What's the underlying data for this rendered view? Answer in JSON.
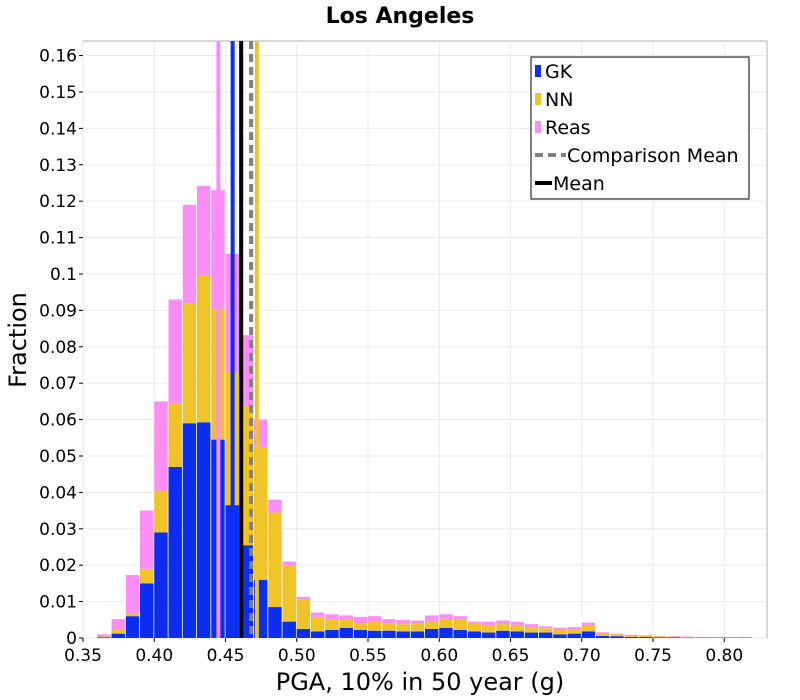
{
  "chart_data": {
    "type": "bar",
    "stacked": true,
    "title": "Los Angeles",
    "xlabel": "PGA, 10% in 50 year (g)",
    "ylabel": "Fraction",
    "xlim": [
      0.35,
      0.83
    ],
    "ylim": [
      0,
      0.164
    ],
    "grid": true,
    "legend_position": "top-right",
    "bin_width": 0.01,
    "x_ticks": [
      0.35,
      0.4,
      0.45,
      0.5,
      0.55,
      0.6,
      0.65,
      0.7,
      0.75,
      0.8
    ],
    "x_tick_labels": [
      "0.35",
      "0.40",
      "0.45",
      "0.50",
      "0.55",
      "0.60",
      "0.65",
      "0.70",
      "0.75",
      "0.80"
    ],
    "y_ticks": [
      0,
      0.01,
      0.02,
      0.03,
      0.04,
      0.05,
      0.06,
      0.07,
      0.08,
      0.09,
      0.1,
      0.11,
      0.12,
      0.13,
      0.14,
      0.15,
      0.16
    ],
    "y_tick_labels": [
      "0",
      "0.01",
      "0.02",
      "0.03",
      "0.04",
      "0.05",
      "0.06",
      "0.07",
      "0.08",
      "0.09",
      "0.1",
      "0.11",
      "0.12",
      "0.13",
      "0.14",
      "0.15",
      "0.16"
    ],
    "bin_starts": [
      0.36,
      0.37,
      0.38,
      0.39,
      0.4,
      0.41,
      0.42,
      0.43,
      0.44,
      0.45,
      0.46,
      0.47,
      0.48,
      0.49,
      0.5,
      0.51,
      0.52,
      0.53,
      0.54,
      0.55,
      0.56,
      0.57,
      0.58,
      0.59,
      0.6,
      0.61,
      0.62,
      0.63,
      0.64,
      0.65,
      0.66,
      0.67,
      0.68,
      0.69,
      0.7,
      0.71,
      0.72,
      0.73,
      0.74,
      0.75,
      0.76,
      0.77,
      0.78,
      0.79,
      0.8,
      0.81,
      0.82
    ],
    "series": [
      {
        "name": "GK",
        "color": "#0b2ef0",
        "values": [
          0.0002,
          0.0012,
          0.006,
          0.015,
          0.029,
          0.047,
          0.059,
          0.0592,
          0.0545,
          0.0365,
          0.0255,
          0.016,
          0.0085,
          0.0045,
          0.0025,
          0.0018,
          0.0022,
          0.0028,
          0.0022,
          0.002,
          0.002,
          0.0018,
          0.0018,
          0.0025,
          0.0028,
          0.0022,
          0.0018,
          0.0015,
          0.002,
          0.0018,
          0.0015,
          0.0015,
          0.001,
          0.0012,
          0.0018,
          0.0006,
          0.0005,
          0.0003,
          0.0003,
          0.0002,
          0.0002,
          0.0001,
          0.0001,
          0.0001,
          0.0001,
          0.0001,
          0
        ]
      },
      {
        "name": "NN",
        "color": "#f0c428",
        "values": [
          0.0002,
          0.001,
          0.0008,
          0.004,
          0.0115,
          0.0175,
          0.033,
          0.0405,
          0.036,
          0.0365,
          0.0382,
          0.0365,
          0.026,
          0.0155,
          0.008,
          0.004,
          0.0028,
          0.0022,
          0.0018,
          0.0025,
          0.002,
          0.002,
          0.0022,
          0.0022,
          0.0025,
          0.0028,
          0.0022,
          0.0018,
          0.0018,
          0.0018,
          0.0015,
          0.0012,
          0.0012,
          0.0012,
          0.0018,
          0.0008,
          0.0005,
          0.0004,
          0.0003,
          0.0003,
          0.0002,
          0.0002,
          0.0001,
          0.0001,
          0.0001,
          0.0001,
          0
        ]
      },
      {
        "name": "Reas",
        "color": "#fb8ef6",
        "values": [
          0.0006,
          0.003,
          0.0105,
          0.016,
          0.0245,
          0.0285,
          0.027,
          0.0245,
          0.0325,
          0.0325,
          0.0195,
          0.0075,
          0.0035,
          0.001,
          0.0008,
          0.0012,
          0.0015,
          0.0012,
          0.0018,
          0.0015,
          0.0012,
          0.0012,
          0.0008,
          0.0015,
          0.0012,
          0.001,
          0.0005,
          0.0012,
          0.001,
          0.0008,
          0.0008,
          0.0005,
          0.0006,
          0.0006,
          0.0006,
          0.0002,
          0.0002,
          0.0002,
          0.0002,
          0.0001,
          0.0001,
          0.0001,
          0.0001,
          0.0001,
          0.0001,
          0.0001,
          0
        ]
      }
    ],
    "mean_lines": [
      {
        "legend": "Comparison Mean",
        "x": 0.468,
        "color": "#808080",
        "style": "dashed"
      },
      {
        "legend": "Mean",
        "x": 0.461,
        "color": "#000000",
        "style": "solid"
      },
      {
        "x": 0.455,
        "color": "#0b2ef0",
        "style": "solid"
      },
      {
        "x": 0.472,
        "color": "#f0c428",
        "style": "solid"
      },
      {
        "x": 0.445,
        "color": "#fb8ef6",
        "style": "solid"
      }
    ],
    "legend": [
      {
        "label": "GK",
        "kind": "patch",
        "color": "#0b2ef0"
      },
      {
        "label": "NN",
        "kind": "patch",
        "color": "#f0c428"
      },
      {
        "label": "Reas",
        "kind": "patch",
        "color": "#fb8ef6"
      },
      {
        "label": "Comparison Mean",
        "kind": "dashed-line",
        "color": "#808080"
      },
      {
        "label": "Mean",
        "kind": "line",
        "color": "#000000"
      }
    ]
  }
}
